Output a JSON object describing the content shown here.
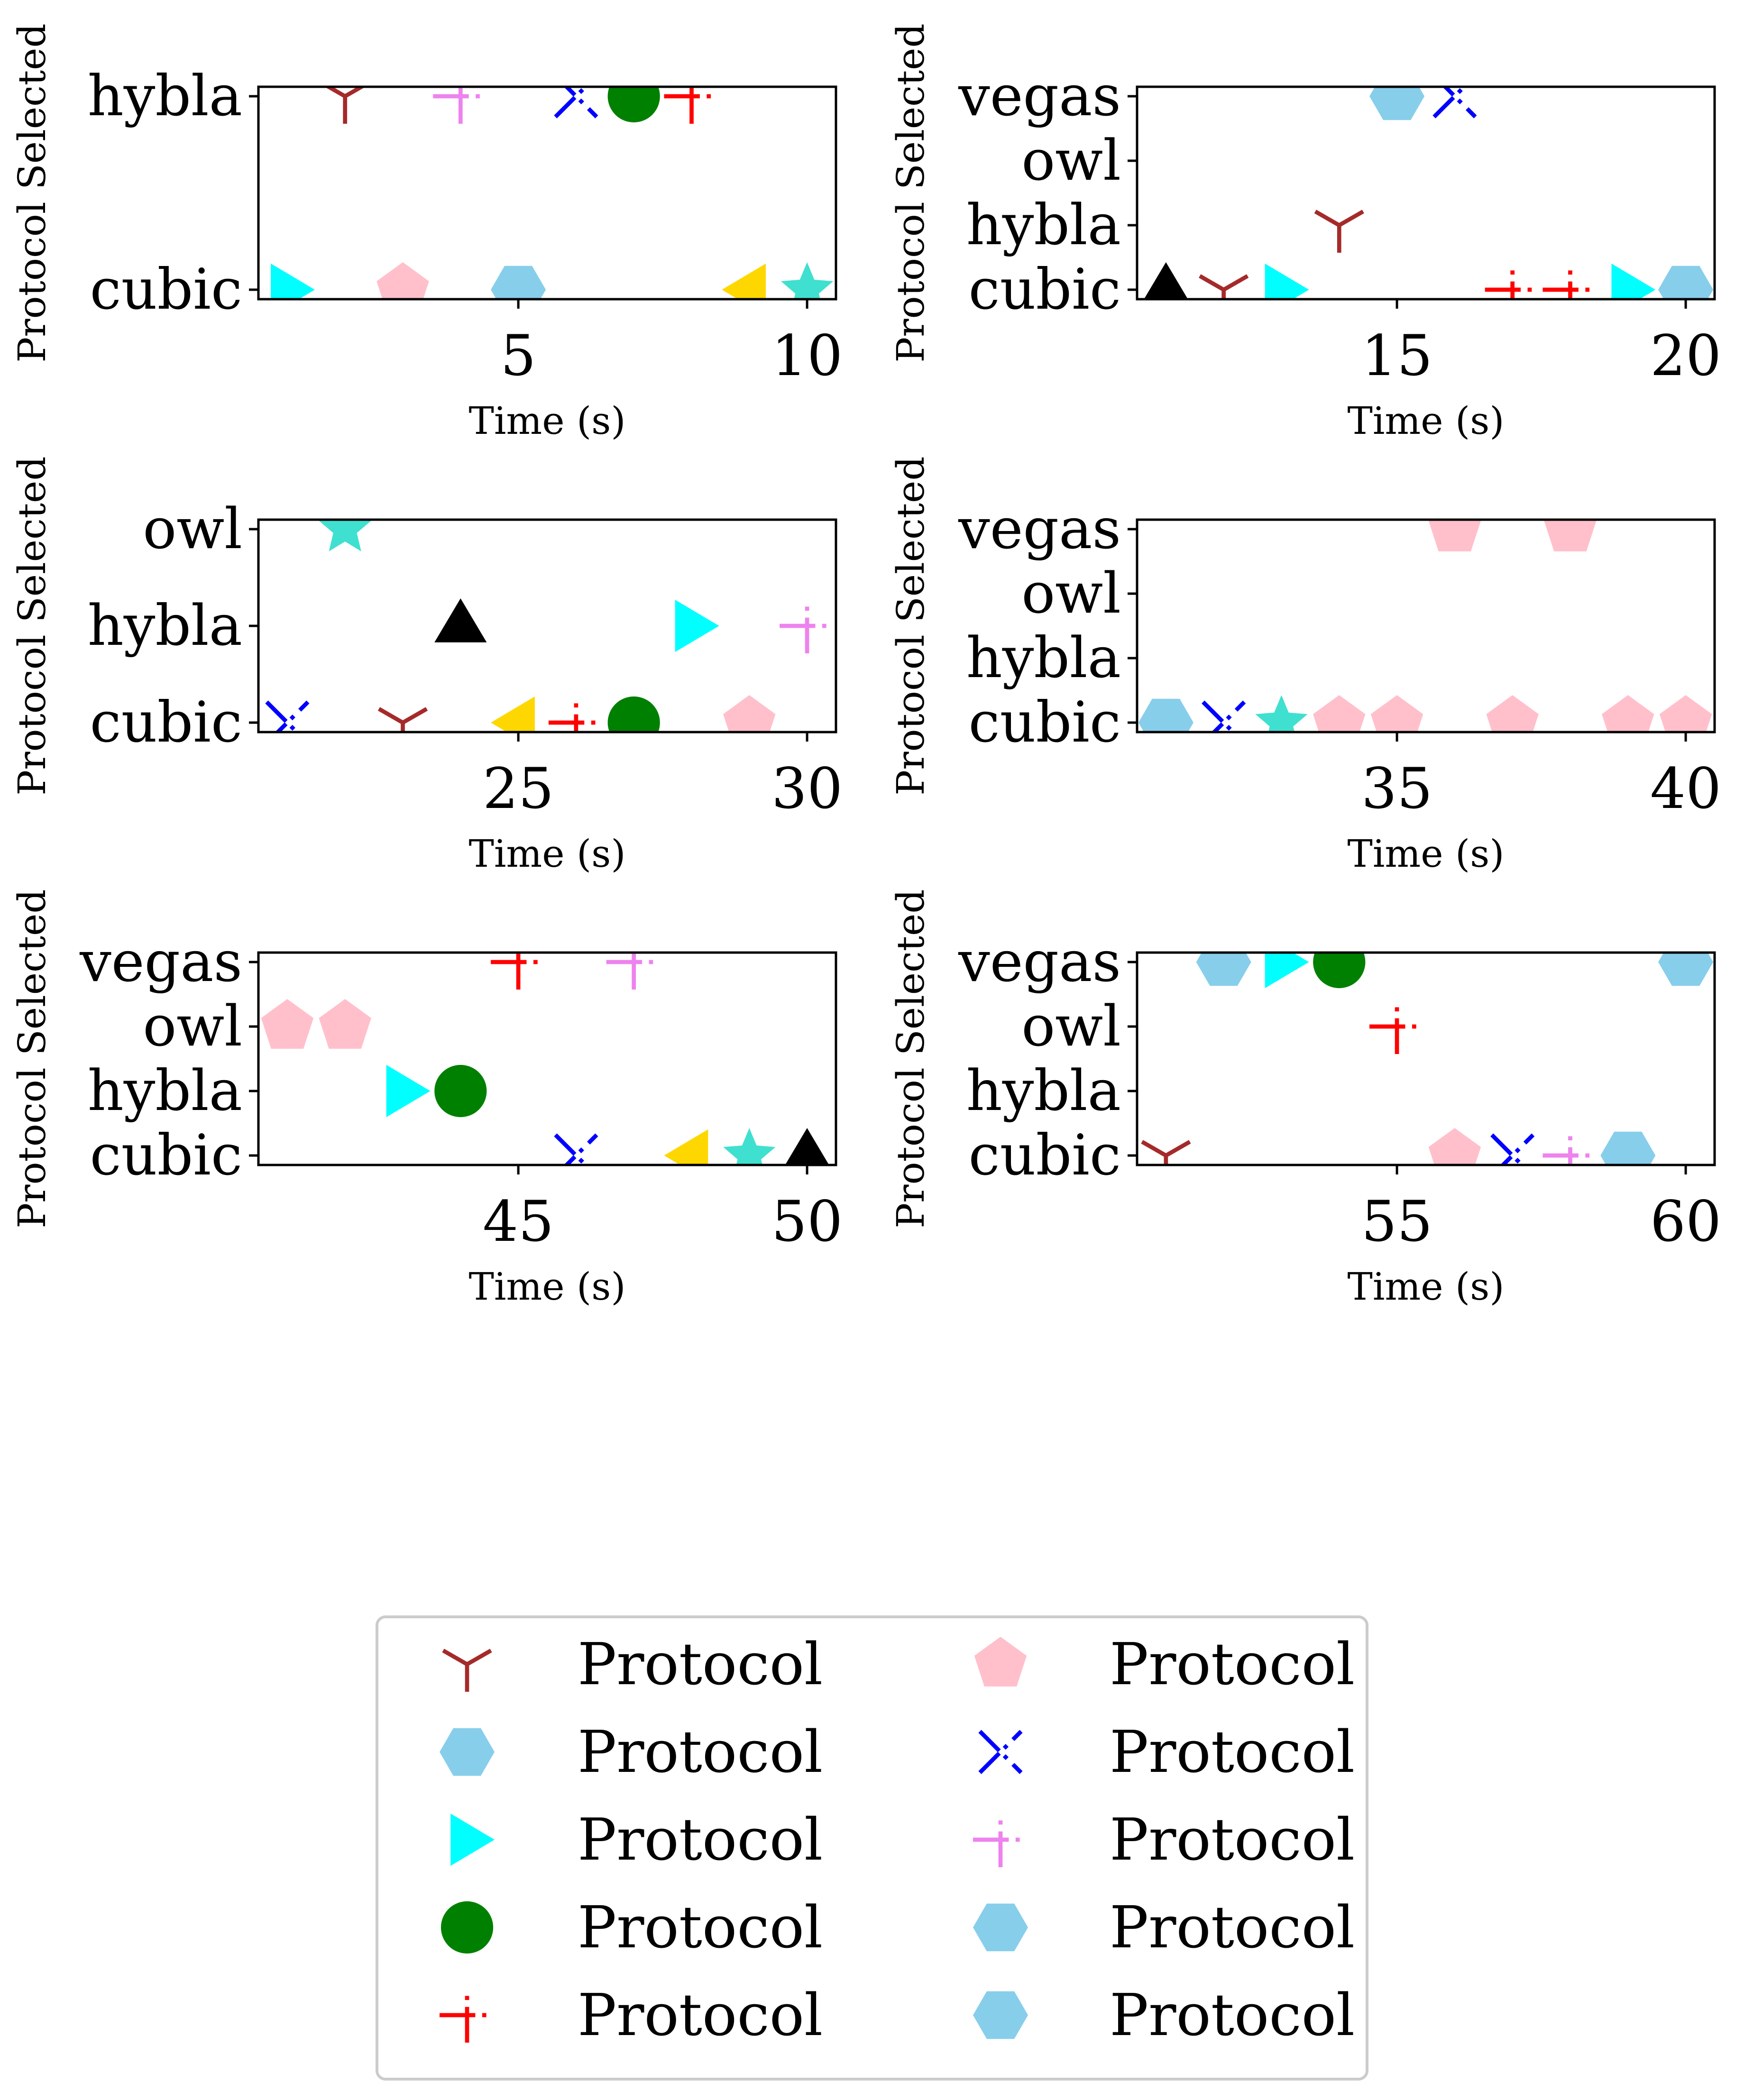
{
  "chart_data": [
    {
      "type": "scatter",
      "xlabel": "Time (s)",
      "ylabel": "Protocol Selected",
      "xlim": [
        0.5,
        10.5
      ],
      "xticks": [
        5,
        10
      ],
      "yticks": [
        "cubic",
        "hybla"
      ],
      "points": [
        {
          "x": 1,
          "y": "cubic",
          "marker": "tri-right",
          "color": "#00FFFF"
        },
        {
          "x": 2,
          "y": "hybla",
          "marker": "tri-down",
          "color": "#A52A2A"
        },
        {
          "x": 3,
          "y": "cubic",
          "marker": "pentagon",
          "color": "#FFC0CB"
        },
        {
          "x": 4,
          "y": "hybla",
          "marker": "plus-dot",
          "color": "#EE82EE"
        },
        {
          "x": 5,
          "y": "cubic",
          "marker": "hexagon",
          "color": "#87CEEB"
        },
        {
          "x": 6,
          "y": "hybla",
          "marker": "x-dot",
          "color": "#0000FF"
        },
        {
          "x": 7,
          "y": "hybla",
          "marker": "circle",
          "color": "#008000"
        },
        {
          "x": 8,
          "y": "hybla",
          "marker": "plus-dot",
          "color": "#FF0000"
        },
        {
          "x": 9,
          "y": "cubic",
          "marker": "tri-left",
          "color": "#FFD700"
        },
        {
          "x": 10,
          "y": "cubic",
          "marker": "star",
          "color": "#40E0D0"
        }
      ]
    },
    {
      "type": "scatter",
      "xlabel": "Time (s)",
      "ylabel": "Protocol Selected",
      "xlim": [
        10.5,
        20.5
      ],
      "xticks": [
        15,
        20
      ],
      "yticks": [
        "cubic",
        "hybla",
        "owl",
        "vegas"
      ],
      "points": [
        {
          "x": 11,
          "y": "cubic",
          "marker": "triangle-up",
          "color": "#000000"
        },
        {
          "x": 12,
          "y": "cubic",
          "marker": "tri-down",
          "color": "#A52A2A"
        },
        {
          "x": 13,
          "y": "cubic",
          "marker": "tri-right",
          "color": "#00FFFF"
        },
        {
          "x": 14,
          "y": "hybla",
          "marker": "tri-down",
          "color": "#A52A2A"
        },
        {
          "x": 15,
          "y": "vegas",
          "marker": "hexagon",
          "color": "#87CEEB"
        },
        {
          "x": 16,
          "y": "vegas",
          "marker": "x-dot",
          "color": "#0000FF"
        },
        {
          "x": 17,
          "y": "cubic",
          "marker": "plus-dot",
          "color": "#FF0000"
        },
        {
          "x": 18,
          "y": "cubic",
          "marker": "plus-dot",
          "color": "#FF0000"
        },
        {
          "x": 19,
          "y": "cubic",
          "marker": "tri-right",
          "color": "#00FFFF"
        },
        {
          "x": 20,
          "y": "cubic",
          "marker": "hexagon",
          "color": "#87CEEB"
        }
      ]
    },
    {
      "type": "scatter",
      "xlabel": "Time (s)",
      "ylabel": "Protocol Selected",
      "xlim": [
        20.5,
        30.5
      ],
      "xticks": [
        25,
        30
      ],
      "yticks": [
        "cubic",
        "hybla",
        "owl"
      ],
      "points": [
        {
          "x": 21,
          "y": "cubic",
          "marker": "x-dot",
          "color": "#0000FF"
        },
        {
          "x": 22,
          "y": "owl",
          "marker": "star",
          "color": "#40E0D0"
        },
        {
          "x": 23,
          "y": "cubic",
          "marker": "tri-down",
          "color": "#A52A2A"
        },
        {
          "x": 24,
          "y": "hybla",
          "marker": "triangle-up",
          "color": "#000000"
        },
        {
          "x": 25,
          "y": "cubic",
          "marker": "tri-left",
          "color": "#FFD700"
        },
        {
          "x": 26,
          "y": "cubic",
          "marker": "plus-dot",
          "color": "#FF0000"
        },
        {
          "x": 27,
          "y": "cubic",
          "marker": "circle",
          "color": "#008000"
        },
        {
          "x": 28,
          "y": "hybla",
          "marker": "tri-right",
          "color": "#00FFFF"
        },
        {
          "x": 29,
          "y": "cubic",
          "marker": "pentagon",
          "color": "#FFC0CB"
        },
        {
          "x": 30,
          "y": "hybla",
          "marker": "plus-dot",
          "color": "#EE82EE"
        }
      ]
    },
    {
      "type": "scatter",
      "xlabel": "Time (s)",
      "ylabel": "Protocol Selected",
      "xlim": [
        30.5,
        40.5
      ],
      "xticks": [
        35,
        40
      ],
      "yticks": [
        "cubic",
        "hybla",
        "owl",
        "vegas"
      ],
      "points": [
        {
          "x": 31,
          "y": "cubic",
          "marker": "hexagon",
          "color": "#87CEEB"
        },
        {
          "x": 32,
          "y": "cubic",
          "marker": "x-dot",
          "color": "#0000FF"
        },
        {
          "x": 33,
          "y": "cubic",
          "marker": "star",
          "color": "#40E0D0"
        },
        {
          "x": 34,
          "y": "cubic",
          "marker": "pentagon",
          "color": "#FFC0CB"
        },
        {
          "x": 35,
          "y": "cubic",
          "marker": "pentagon",
          "color": "#FFC0CB"
        },
        {
          "x": 36,
          "y": "vegas",
          "marker": "pentagon",
          "color": "#FFC0CB"
        },
        {
          "x": 37,
          "y": "cubic",
          "marker": "pentagon",
          "color": "#FFC0CB"
        },
        {
          "x": 38,
          "y": "vegas",
          "marker": "pentagon",
          "color": "#FFC0CB"
        },
        {
          "x": 39,
          "y": "cubic",
          "marker": "pentagon",
          "color": "#FFC0CB"
        },
        {
          "x": 40,
          "y": "cubic",
          "marker": "pentagon",
          "color": "#FFC0CB"
        }
      ]
    },
    {
      "type": "scatter",
      "xlabel": "Time (s)",
      "ylabel": "Protocol Selected",
      "xlim": [
        40.5,
        50.5
      ],
      "xticks": [
        45,
        50
      ],
      "yticks": [
        "cubic",
        "hybla",
        "owl",
        "vegas"
      ],
      "points": [
        {
          "x": 41,
          "y": "owl",
          "marker": "pentagon",
          "color": "#FFC0CB"
        },
        {
          "x": 42,
          "y": "owl",
          "marker": "pentagon",
          "color": "#FFC0CB"
        },
        {
          "x": 43,
          "y": "hybla",
          "marker": "tri-right",
          "color": "#00FFFF"
        },
        {
          "x": 44,
          "y": "hybla",
          "marker": "circle",
          "color": "#008000"
        },
        {
          "x": 45,
          "y": "vegas",
          "marker": "plus-dot",
          "color": "#FF0000"
        },
        {
          "x": 46,
          "y": "cubic",
          "marker": "x-dot",
          "color": "#0000FF"
        },
        {
          "x": 47,
          "y": "vegas",
          "marker": "plus-dot",
          "color": "#EE82EE"
        },
        {
          "x": 48,
          "y": "cubic",
          "marker": "tri-left",
          "color": "#FFD700"
        },
        {
          "x": 49,
          "y": "cubic",
          "marker": "star",
          "color": "#40E0D0"
        },
        {
          "x": 50,
          "y": "cubic",
          "marker": "triangle-up",
          "color": "#000000"
        }
      ]
    },
    {
      "type": "scatter",
      "xlabel": "Time (s)",
      "ylabel": "Protocol Selected",
      "xlim": [
        50.5,
        60.5
      ],
      "xticks": [
        55,
        60
      ],
      "yticks": [
        "cubic",
        "hybla",
        "owl",
        "vegas"
      ],
      "points": [
        {
          "x": 51,
          "y": "cubic",
          "marker": "tri-down",
          "color": "#A52A2A"
        },
        {
          "x": 52,
          "y": "vegas",
          "marker": "hexagon",
          "color": "#87CEEB"
        },
        {
          "x": 53,
          "y": "vegas",
          "marker": "tri-right",
          "color": "#00FFFF"
        },
        {
          "x": 54,
          "y": "vegas",
          "marker": "circle",
          "color": "#008000"
        },
        {
          "x": 55,
          "y": "owl",
          "marker": "plus-dot",
          "color": "#FF0000"
        },
        {
          "x": 56,
          "y": "cubic",
          "marker": "pentagon",
          "color": "#FFC0CB"
        },
        {
          "x": 57,
          "y": "cubic",
          "marker": "x-dot",
          "color": "#0000FF"
        },
        {
          "x": 58,
          "y": "cubic",
          "marker": "plus-dot",
          "color": "#EE82EE"
        },
        {
          "x": 59,
          "y": "cubic",
          "marker": "hexagon",
          "color": "#87CEEB"
        },
        {
          "x": 60,
          "y": "vegas",
          "marker": "hexagon",
          "color": "#87CEEB"
        }
      ]
    }
  ],
  "legend": {
    "placement": "bottom-center",
    "columns": 2,
    "entries": [
      {
        "label": "Protocol",
        "marker": "tri-down",
        "color": "#A52A2A"
      },
      {
        "label": "Protocol",
        "marker": "hexagon",
        "color": "#87CEEB"
      },
      {
        "label": "Protocol",
        "marker": "tri-right",
        "color": "#00FFFF"
      },
      {
        "label": "Protocol",
        "marker": "circle",
        "color": "#008000"
      },
      {
        "label": "Protocol",
        "marker": "plus-dot",
        "color": "#FF0000"
      },
      {
        "label": "Protocol",
        "marker": "pentagon",
        "color": "#FFC0CB"
      },
      {
        "label": "Protocol",
        "marker": "x-dot",
        "color": "#0000FF"
      },
      {
        "label": "Protocol",
        "marker": "plus-dot",
        "color": "#EE82EE"
      },
      {
        "label": "Protocol",
        "marker": "hexagon",
        "color": "#87CEEB"
      },
      {
        "label": "Protocol",
        "marker": "hexagon",
        "color": "#87CEEB"
      }
    ]
  }
}
